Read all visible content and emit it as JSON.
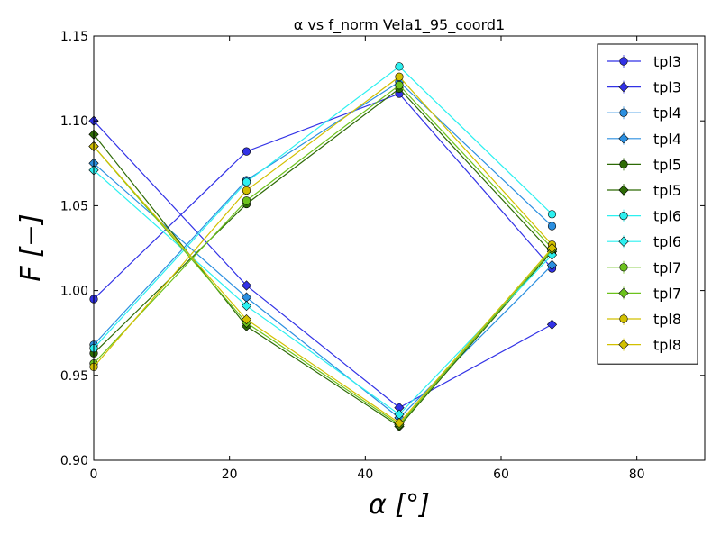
{
  "chart_data": {
    "type": "line",
    "title": "α vs f_norm Vela1_95_coord1",
    "xlabel": "α [°]",
    "ylabel": "F [−]",
    "xlim": [
      0,
      90
    ],
    "ylim": [
      0.9,
      1.15
    ],
    "xticks": [
      0,
      20,
      40,
      60,
      80
    ],
    "xtick_labels": [
      "0",
      "20",
      "40",
      "60",
      "80"
    ],
    "yticks": [
      0.9,
      0.95,
      1.0,
      1.05,
      1.1,
      1.15
    ],
    "ytick_labels": [
      "0.90",
      "0.95",
      "1.00",
      "1.05",
      "1.10",
      "1.15"
    ],
    "grid": false,
    "legend_position": "top-right",
    "x": [
      0,
      22.5,
      45,
      67.5
    ],
    "series": [
      {
        "name": "tpl3",
        "marker": "circle",
        "color": "#3232e6",
        "values": [
          0.995,
          1.082,
          1.116,
          1.013
        ]
      },
      {
        "name": "tpl3",
        "marker": "diamond",
        "color": "#3232e6",
        "values": [
          1.1,
          1.003,
          0.931,
          0.98
        ]
      },
      {
        "name": "tpl4",
        "marker": "circle",
        "color": "#2b8fe0",
        "values": [
          0.968,
          1.065,
          1.123,
          1.038
        ]
      },
      {
        "name": "tpl4",
        "marker": "diamond",
        "color": "#2b8fe0",
        "values": [
          1.075,
          0.996,
          0.925,
          1.015
        ]
      },
      {
        "name": "tpl5",
        "marker": "circle",
        "color": "#2d6a05",
        "values": [
          0.963,
          1.051,
          1.119,
          1.022
        ]
      },
      {
        "name": "tpl5",
        "marker": "diamond",
        "color": "#2d6a05",
        "values": [
          1.092,
          0.979,
          0.92,
          1.023
        ]
      },
      {
        "name": "tpl6",
        "marker": "circle",
        "color": "#2cf0f0",
        "values": [
          0.966,
          1.064,
          1.132,
          1.045
        ]
      },
      {
        "name": "tpl6",
        "marker": "diamond",
        "color": "#2cf0f0",
        "values": [
          1.071,
          0.991,
          0.927,
          1.021
        ]
      },
      {
        "name": "tpl7",
        "marker": "circle",
        "color": "#6cc21c",
        "values": [
          0.957,
          1.053,
          1.121,
          1.025
        ]
      },
      {
        "name": "tpl7",
        "marker": "diamond",
        "color": "#6cc21c",
        "values": [
          1.085,
          0.981,
          0.921,
          1.024
        ]
      },
      {
        "name": "tpl8",
        "marker": "circle",
        "color": "#d2c000",
        "values": [
          0.955,
          1.059,
          1.126,
          1.027
        ]
      },
      {
        "name": "tpl8",
        "marker": "diamond",
        "color": "#d2c000",
        "values": [
          1.085,
          0.983,
          0.922,
          1.025
        ]
      }
    ]
  }
}
